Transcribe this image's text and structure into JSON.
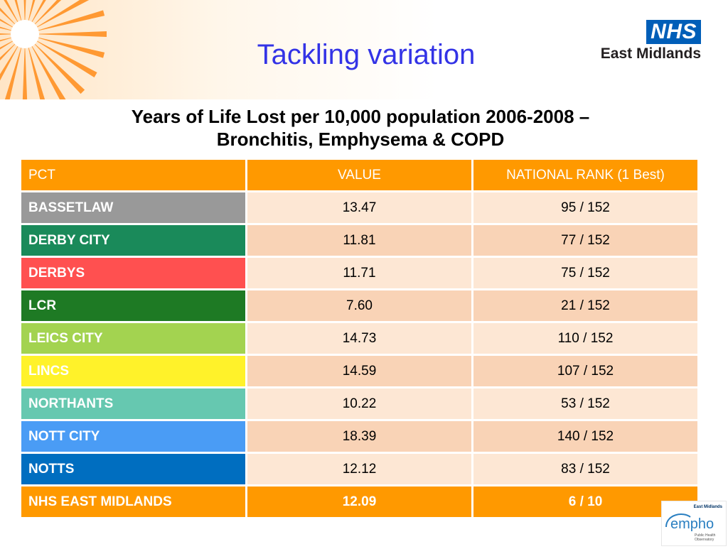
{
  "header": {
    "title": "Tackling variation",
    "nhs_box": "NHS",
    "nhs_region": "East Midlands"
  },
  "subtitle": {
    "line1": "Years of Life Lost per 10,000 population 2006-2008 –",
    "line2": "Bronchitis, Emphysema & COPD"
  },
  "table": {
    "columns": [
      "PCT",
      "VALUE",
      "NATIONAL RANK (1 Best)"
    ],
    "rows": [
      {
        "pct": "BASSETLAW",
        "value": "13.47",
        "rank": "95 / 152",
        "color": "#999999"
      },
      {
        "pct": "DERBY CITY",
        "value": "11.81",
        "rank": "77 / 152",
        "color": "#1a8a5a"
      },
      {
        "pct": "DERBYS",
        "value": "11.71",
        "rank": "75 / 152",
        "color": "#ff5050"
      },
      {
        "pct": "LCR",
        "value": "7.60",
        "rank": "21 / 152",
        "color": "#1e7a24"
      },
      {
        "pct": "LEICS CITY",
        "value": "14.73",
        "rank": "110 / 152",
        "color": "#a3d350"
      },
      {
        "pct": "LINCS",
        "value": "14.59",
        "rank": "107 / 152",
        "color": "#fff22a"
      },
      {
        "pct": "NORTHANTS",
        "value": "10.22",
        "rank": "53 / 152",
        "color": "#66c8b0"
      },
      {
        "pct": "NOTT CITY",
        "value": "18.39",
        "rank": "140 / 152",
        "color": "#4a9cf5"
      },
      {
        "pct": "NOTTS",
        "value": "12.12",
        "rank": "83 / 152",
        "color": "#006ec0"
      },
      {
        "pct": "NHS EAST MIDLANDS",
        "value": "12.09",
        "rank": "6 / 10",
        "color": "#ff9900"
      }
    ]
  },
  "empho": {
    "top": "East Midlands",
    "name": "empho",
    "line1": "Public Health",
    "line2": "Observatory"
  }
}
